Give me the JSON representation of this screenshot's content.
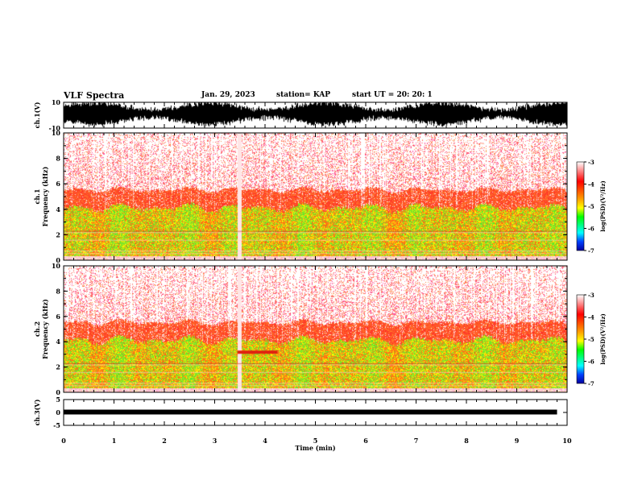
{
  "header": {
    "title": "VLF Spectra",
    "date": "Jan. 29, 2023",
    "station": "station= KAP",
    "start": "start  UT  =   20: 20: 1"
  },
  "chart_data": [
    {
      "type": "line",
      "panel": "ch1-waveform",
      "ylabel": "ch.1(V)",
      "ylim": [
        -10,
        10
      ],
      "yticks": [
        "10",
        "-10"
      ],
      "xlim": [
        0,
        10
      ]
    },
    {
      "type": "heatmap",
      "panel": "ch1-spectrogram",
      "ylabel": "Frequency (kHz)",
      "channel_label": "ch.1",
      "ylim": [
        0,
        10
      ],
      "yticks": [
        "0",
        "2",
        "4",
        "6",
        "8",
        "10"
      ],
      "xlim": [
        0,
        10
      ],
      "colorbar": {
        "label": "log(PSD)(V²/Hz)",
        "range": [
          -7,
          -3
        ],
        "ticks": [
          "-3",
          "-4",
          "-5",
          "-6",
          "-7"
        ]
      }
    },
    {
      "type": "heatmap",
      "panel": "ch2-spectrogram",
      "ylabel": "Frequency (kHz)",
      "channel_label": "ch.2",
      "ylim": [
        0,
        10
      ],
      "yticks": [
        "0",
        "2",
        "4",
        "6",
        "8",
        "10"
      ],
      "xlim": [
        0,
        10
      ],
      "colorbar": {
        "label": "log(PSD)(V²/Hz)",
        "range": [
          -7,
          -3
        ],
        "ticks": [
          "-3",
          "-4",
          "-5",
          "-6",
          "-7"
        ]
      }
    },
    {
      "type": "line",
      "panel": "ch3-waveform",
      "ylabel": "ch.3(V)",
      "ylim": [
        -5,
        5
      ],
      "yticks": [
        "5",
        "0",
        "-5"
      ],
      "xlim": [
        0,
        10
      ],
      "xlabel": "Time (min)",
      "xticks": [
        "0",
        "1",
        "2",
        "3",
        "4",
        "5",
        "6",
        "7",
        "8",
        "9",
        "10"
      ],
      "data_end": 9.8
    }
  ]
}
